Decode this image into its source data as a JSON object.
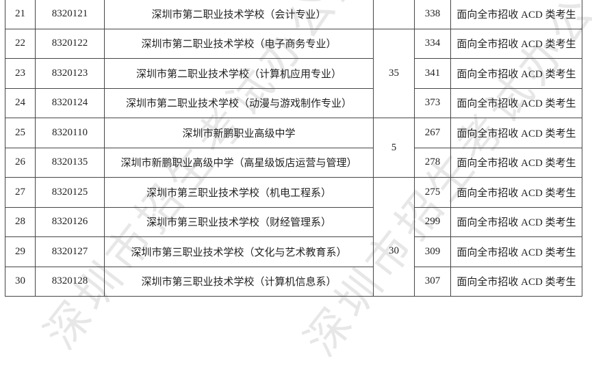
{
  "table": {
    "rows": [
      {
        "no": "21",
        "code": "8320121",
        "school": "深圳市第二职业技术学校（会计专业）",
        "score": "338",
        "scope": "面向全市招收 ACD 类考生"
      },
      {
        "no": "22",
        "code": "8320122",
        "school": "深圳市第二职业技术学校（电子商务专业）",
        "score": "334",
        "scope": "面向全市招收 ACD 类考生"
      },
      {
        "no": "23",
        "code": "8320123",
        "school": "深圳市第二职业技术学校（计算机应用专业）",
        "score": "341",
        "scope": "面向全市招收 ACD 类考生"
      },
      {
        "no": "24",
        "code": "8320124",
        "school": "深圳市第二职业技术学校（动漫与游戏制作专业）",
        "score": "373",
        "scope": "面向全市招收 ACD 类考生"
      },
      {
        "no": "25",
        "code": "8320110",
        "school": "深圳市新鹏职业高级中学",
        "score": "267",
        "scope": "面向全市招收 ACD 类考生"
      },
      {
        "no": "26",
        "code": "8320135",
        "school": "深圳市新鹏职业高级中学（高星级饭店运营与管理）",
        "score": "278",
        "scope": "面向全市招收 ACD 类考生"
      },
      {
        "no": "27",
        "code": "8320125",
        "school": "深圳市第三职业技术学校（机电工程系）",
        "score": "275",
        "scope": "面向全市招收 ACD 类考生"
      },
      {
        "no": "28",
        "code": "8320126",
        "school": "深圳市第三职业技术学校（财经管理系）",
        "score": "299",
        "scope": "面向全市招收 ACD 类考生"
      },
      {
        "no": "29",
        "code": "8320127",
        "school": "深圳市第三职业技术学校（文化与艺术教育系）",
        "score": "309",
        "scope": "面向全市招收 ACD 类考生"
      },
      {
        "no": "30",
        "code": "8320128",
        "school": "深圳市第三职业技术学校（计算机信息系）",
        "score": "307",
        "scope": "面向全市招收 ACD 类考生"
      }
    ],
    "group_counts": [
      "35",
      "5",
      "30"
    ]
  },
  "watermark": "深圳市招生考试办公室"
}
